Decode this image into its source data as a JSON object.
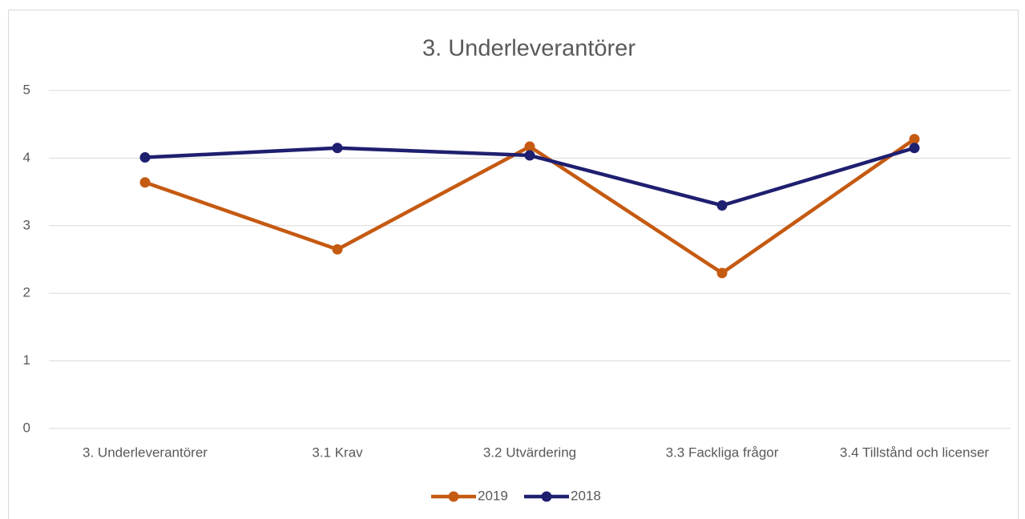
{
  "chart_data": {
    "type": "line",
    "title": "3. Underleverantörer",
    "categories": [
      "3. Underleverantörer",
      "3.1 Krav",
      "3.2 Utvärdering",
      "3.3 Fackliga frågor",
      "3.4 Tillstånd och licenser"
    ],
    "series": [
      {
        "name": "2019",
        "color": "#c55a11",
        "values": [
          3.64,
          2.65,
          4.17,
          2.3,
          4.28
        ]
      },
      {
        "name": "2018",
        "color": "#1f1f70",
        "values": [
          4.01,
          4.15,
          4.04,
          3.3,
          4.15
        ]
      }
    ],
    "ylim": [
      0,
      5
    ],
    "yticks": [
      0,
      1,
      2,
      3,
      4,
      5
    ],
    "grid": true,
    "legend": "bottom"
  }
}
